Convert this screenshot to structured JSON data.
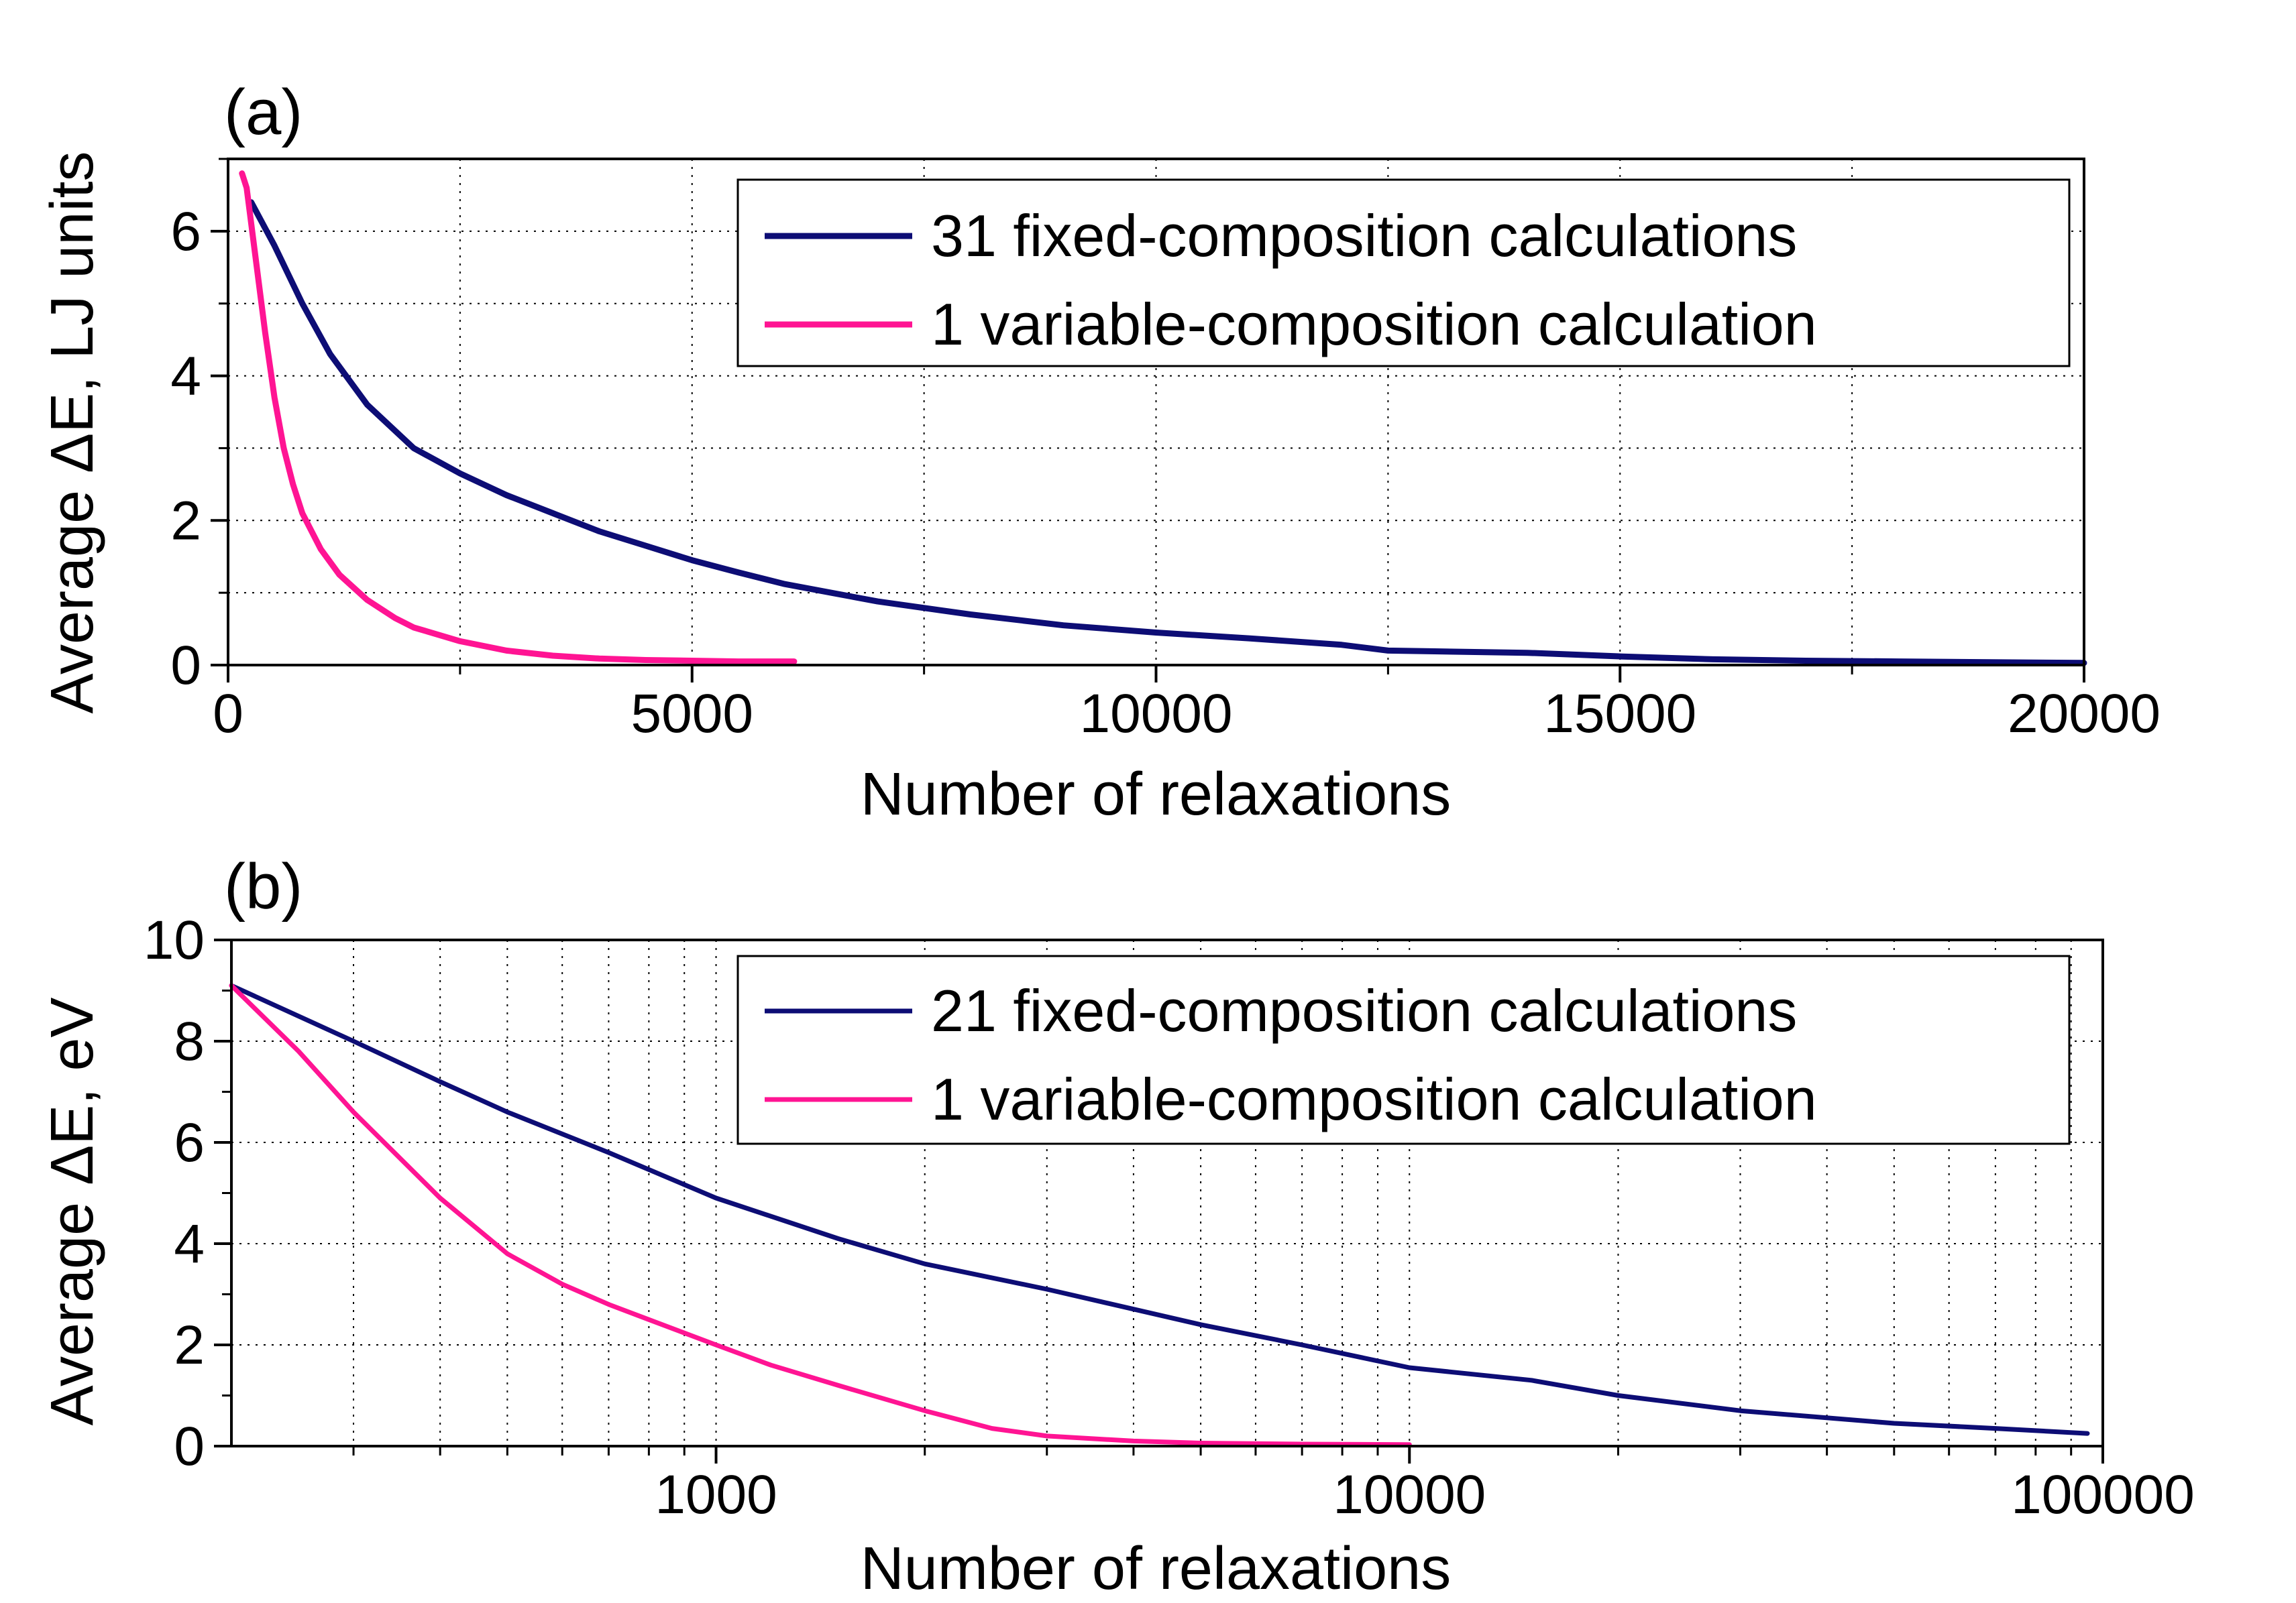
{
  "chart_data": [
    {
      "id": "a",
      "type": "line",
      "panel_label": "(a)",
      "xlabel": "Number of relaxations",
      "ylabel": "Average ΔE, LJ units",
      "x_scale": "linear",
      "xlim": [
        0,
        20000
      ],
      "ylim": [
        0,
        7
      ],
      "x_ticks": [
        0,
        5000,
        10000,
        15000,
        20000
      ],
      "x_tick_labels": [
        "0",
        "5000",
        "10000",
        "15000",
        "20000"
      ],
      "y_ticks": [
        0,
        2,
        4,
        6
      ],
      "y_tick_labels": [
        "0",
        "2",
        "4",
        "6"
      ],
      "grid": true,
      "legend_position": "top-right",
      "series": [
        {
          "name": "31 fixed-composition calculations",
          "color": "#0d0d75",
          "x": [
            250,
            500,
            800,
            1100,
            1500,
            2000,
            2500,
            3000,
            3500,
            4000,
            4500,
            5000,
            5500,
            6000,
            7000,
            8000,
            9000,
            10000,
            11000,
            12000,
            12500,
            13000,
            14000,
            15000,
            16000,
            17000,
            18000,
            19000,
            20000
          ],
          "y": [
            6.4,
            5.8,
            5.0,
            4.3,
            3.6,
            3.0,
            2.65,
            2.35,
            2.1,
            1.85,
            1.65,
            1.45,
            1.28,
            1.12,
            0.88,
            0.7,
            0.55,
            0.45,
            0.37,
            0.28,
            0.2,
            0.19,
            0.17,
            0.12,
            0.08,
            0.06,
            0.05,
            0.04,
            0.03
          ]
        },
        {
          "name": "1 variable-composition calculation",
          "color": "#ff1493",
          "x": [
            150,
            200,
            300,
            400,
            500,
            600,
            700,
            800,
            1000,
            1200,
            1500,
            1800,
            2000,
            2500,
            3000,
            3500,
            4000,
            4500,
            5000,
            5500,
            6100
          ],
          "y": [
            6.8,
            6.6,
            5.6,
            4.6,
            3.7,
            3.0,
            2.5,
            2.1,
            1.6,
            1.25,
            0.9,
            0.65,
            0.52,
            0.33,
            0.2,
            0.13,
            0.09,
            0.07,
            0.06,
            0.05,
            0.05
          ]
        }
      ]
    },
    {
      "id": "b",
      "type": "line",
      "panel_label": "(b)",
      "xlabel": "Number of relaxations",
      "ylabel": "Average ΔE,  eV",
      "x_scale": "log",
      "xlim": [
        200,
        100000
      ],
      "ylim": [
        0,
        10
      ],
      "x_ticks": [
        1000,
        10000,
        100000
      ],
      "x_tick_labels": [
        "1000",
        "10000",
        "100000"
      ],
      "y_ticks": [
        0,
        2,
        4,
        6,
        8,
        10
      ],
      "y_tick_labels": [
        "0",
        "2",
        "4",
        "6",
        "8",
        "10"
      ],
      "grid": true,
      "legend_position": "top-right",
      "series": [
        {
          "name": "21 fixed-composition calculations",
          "color": "#0d0d75",
          "x": [
            200,
            300,
            400,
            500,
            700,
            1000,
            1500,
            2000,
            3000,
            5000,
            7000,
            10000,
            15000,
            20000,
            30000,
            50000,
            70000,
            95000
          ],
          "y": [
            9.1,
            8.0,
            7.2,
            6.6,
            5.8,
            4.9,
            4.1,
            3.6,
            3.1,
            2.4,
            2.0,
            1.55,
            1.3,
            1.0,
            0.7,
            0.45,
            0.35,
            0.25
          ]
        },
        {
          "name": "1 variable-composition calculation",
          "color": "#ff1493",
          "x": [
            200,
            250,
            300,
            400,
            500,
            600,
            700,
            800,
            1000,
            1200,
            1500,
            2000,
            2500,
            3000,
            4000,
            5000,
            7000,
            10000
          ],
          "y": [
            9.1,
            7.8,
            6.6,
            4.9,
            3.8,
            3.2,
            2.8,
            2.5,
            2.0,
            1.6,
            1.2,
            0.7,
            0.35,
            0.2,
            0.1,
            0.06,
            0.04,
            0.03
          ]
        }
      ]
    }
  ]
}
